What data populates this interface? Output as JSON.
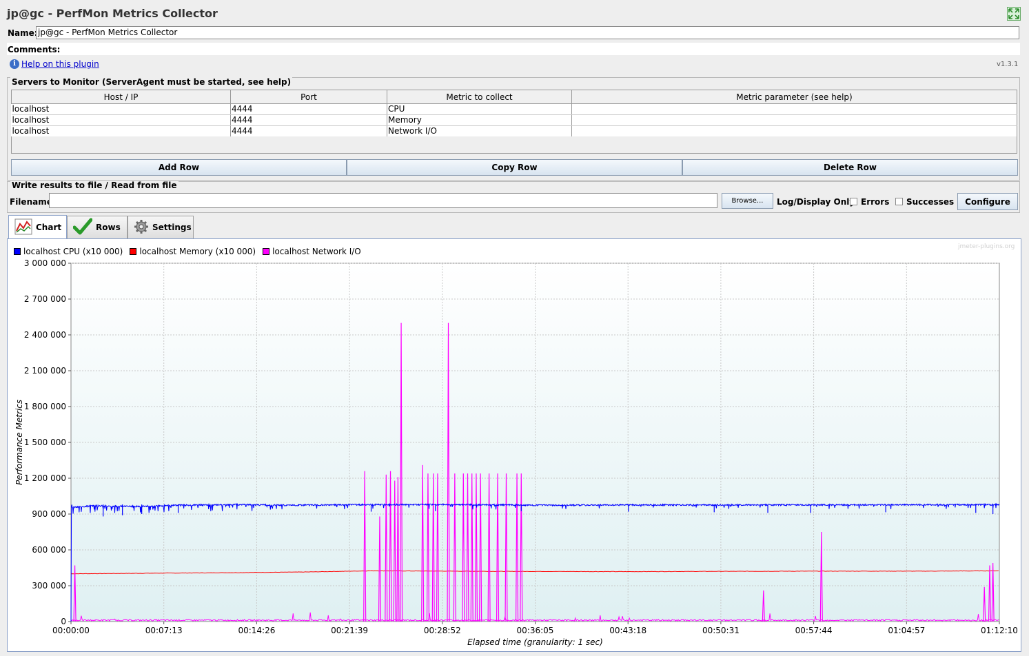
{
  "window": {
    "title": "jp@gc - PerfMon Metrics Collector"
  },
  "form": {
    "name_label": "Name:",
    "name_value": "jp@gc - PerfMon Metrics Collector",
    "comments_label": "Comments:",
    "help_link": "Help on this plugin",
    "version": "v1.3.1"
  },
  "servers": {
    "title": "Servers to Monitor (ServerAgent must be started, see help)",
    "columns": [
      "Host / IP",
      "Port",
      "Metric to collect",
      "Metric parameter (see help)"
    ],
    "rows": [
      [
        "localhost",
        "4444",
        "CPU",
        ""
      ],
      [
        "localhost",
        "4444",
        "Memory",
        ""
      ],
      [
        "localhost",
        "4444",
        "Network I/O",
        ""
      ]
    ],
    "buttons": {
      "add": "Add Row",
      "copy": "Copy Row",
      "delete": "Delete Row"
    }
  },
  "file": {
    "title": "Write results to file / Read from file",
    "filename_label": "Filename",
    "filename_value": "",
    "browse": "Browse...",
    "log_display_label": "Log/Display Only:",
    "errors_label": "Errors",
    "successes_label": "Successes",
    "configure": "Configure"
  },
  "tabs": [
    {
      "label": "Chart",
      "icon": "chart-icon",
      "active": true
    },
    {
      "label": "Rows",
      "icon": "checkmark-icon",
      "active": false
    },
    {
      "label": "Settings",
      "icon": "gear-icon",
      "active": false
    }
  ],
  "watermark": "jmeter-plugins.org",
  "colors": {
    "cpu": "#0000ff",
    "memory": "#ff0000",
    "network": "#ff00ff",
    "grid": "#c8c8c8"
  },
  "chart_data": {
    "type": "line",
    "xlabel": "Elapsed time (granularity: 1 sec)",
    "ylabel": "Performance Metrics",
    "ylim": [
      0,
      3000000
    ],
    "y_ticks": [
      "0",
      "300 000",
      "600 000",
      "900 000",
      "1 200 000",
      "1 500 000",
      "1 800 000",
      "2 100 000",
      "2 400 000",
      "2 700 000",
      "3 000 000"
    ],
    "x_ticks": [
      "00:00:00",
      "00:07:13",
      "00:14:26",
      "00:21:39",
      "00:28:52",
      "00:36:05",
      "00:43:18",
      "00:50:31",
      "00:57:44",
      "01:04:57",
      "01:12:10"
    ],
    "x_tick_seconds": [
      0,
      433,
      866,
      1299,
      1732,
      2165,
      2598,
      3031,
      3464,
      3897,
      4330
    ],
    "xlim_seconds": [
      0,
      4330
    ],
    "series": [
      {
        "name": "localhost CPU (x10 000)",
        "color": "#0000ff",
        "points": [
          [
            0,
            0
          ],
          [
            5,
            960000
          ],
          [
            100,
            975000
          ],
          [
            300,
            970000
          ],
          [
            500,
            980000
          ],
          [
            800,
            985000
          ],
          [
            1000,
            980000
          ],
          [
            1400,
            985000
          ],
          [
            1800,
            985000
          ],
          [
            2200,
            980000
          ],
          [
            2600,
            982000
          ],
          [
            3000,
            982000
          ],
          [
            3400,
            983000
          ],
          [
            3800,
            983000
          ],
          [
            4330,
            985000
          ]
        ],
        "dips": [
          [
            150,
            880000
          ],
          [
            240,
            890000
          ],
          [
            330,
            900000
          ],
          [
            500,
            910000
          ],
          [
            1400,
            920000
          ],
          [
            1700,
            925000
          ],
          [
            2100,
            925000
          ],
          [
            2600,
            920000
          ],
          [
            3000,
            915000
          ],
          [
            3250,
            910000
          ],
          [
            3450,
            910000
          ],
          [
            3800,
            915000
          ],
          [
            4220,
            910000
          ],
          [
            4300,
            900000
          ]
        ]
      },
      {
        "name": "localhost Memory (x10 000)",
        "color": "#ff0000",
        "points": [
          [
            0,
            400000
          ],
          [
            400,
            405000
          ],
          [
            800,
            410000
          ],
          [
            1100,
            415000
          ],
          [
            1400,
            425000
          ],
          [
            2000,
            420000
          ],
          [
            2600,
            418000
          ],
          [
            3000,
            420000
          ],
          [
            3500,
            422000
          ],
          [
            4000,
            422000
          ],
          [
            4330,
            425000
          ]
        ]
      },
      {
        "name": "localhost Network I/O",
        "color": "#ff00ff",
        "baseline": 5000,
        "spikes": [
          [
            18,
            470000
          ],
          [
            1370,
            1260000
          ],
          [
            1440,
            880000
          ],
          [
            1470,
            1230000
          ],
          [
            1490,
            1260000
          ],
          [
            1510,
            1180000
          ],
          [
            1525,
            1210000
          ],
          [
            1540,
            2500000
          ],
          [
            1640,
            1310000
          ],
          [
            1665,
            1240000
          ],
          [
            1690,
            1240000
          ],
          [
            1710,
            1240000
          ],
          [
            1760,
            2500000
          ],
          [
            1790,
            1240000
          ],
          [
            1830,
            1240000
          ],
          [
            1850,
            1240000
          ],
          [
            1870,
            1240000
          ],
          [
            1890,
            1240000
          ],
          [
            1910,
            1240000
          ],
          [
            1950,
            1240000
          ],
          [
            1990,
            1240000
          ],
          [
            2030,
            1240000
          ],
          [
            2080,
            1240000
          ],
          [
            2100,
            1240000
          ],
          [
            3230,
            260000
          ],
          [
            3500,
            750000
          ],
          [
            4260,
            290000
          ],
          [
            4285,
            470000
          ],
          [
            4300,
            490000
          ]
        ]
      }
    ]
  }
}
